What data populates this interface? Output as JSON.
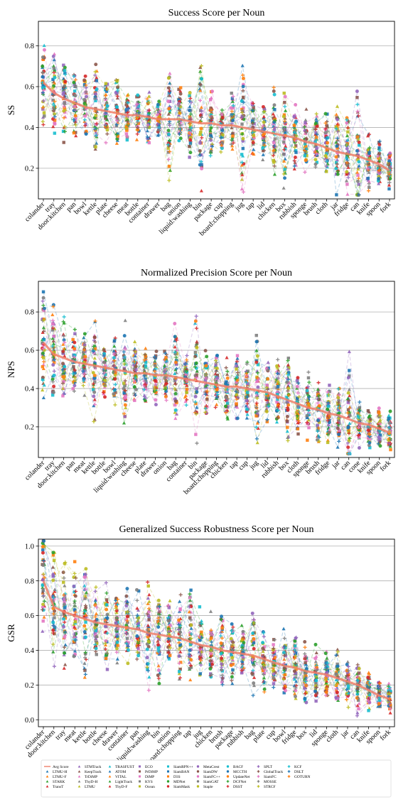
{
  "chart_data": [
    {
      "type": "line",
      "title": "Success Score per Noun",
      "xlabel": "",
      "ylabel": "SS",
      "ylim": [
        0.05,
        0.92
      ],
      "yticks": [
        0.2,
        0.4,
        0.6,
        0.8
      ],
      "grid": "horizontal",
      "categories": [
        "colander",
        "tray",
        "door:kitchen",
        "pan",
        "bowl",
        "kettle",
        "plate",
        "cheese",
        "meat",
        "bottle",
        "container",
        "drawer",
        "bag",
        "onion",
        "liquid:washing",
        "bin",
        "package",
        "cup",
        "board:chopping",
        "jug",
        "tap",
        "lid",
        "chicken",
        "box",
        "rubbish",
        "sponge",
        "brush",
        "cloth",
        "jar",
        "fridge",
        "can",
        "knife",
        "spoon",
        "fork"
      ],
      "avg": [
        0.62,
        0.57,
        0.54,
        0.52,
        0.5,
        0.49,
        0.48,
        0.47,
        0.46,
        0.46,
        0.45,
        0.44,
        0.44,
        0.44,
        0.43,
        0.42,
        0.42,
        0.41,
        0.41,
        0.4,
        0.39,
        0.38,
        0.37,
        0.36,
        0.35,
        0.33,
        0.32,
        0.3,
        0.28,
        0.27,
        0.26,
        0.24,
        0.22,
        0.19
      ],
      "spread": [
        0.28,
        0.24,
        0.28,
        0.18,
        0.18,
        0.3,
        0.18,
        0.2,
        0.14,
        0.14,
        0.14,
        0.14,
        0.32,
        0.18,
        0.18,
        0.36,
        0.2,
        0.14,
        0.18,
        0.36,
        0.16,
        0.16,
        0.24,
        0.26,
        0.18,
        0.18,
        0.18,
        0.22,
        0.24,
        0.2,
        0.4,
        0.16,
        0.12,
        0.1
      ]
    },
    {
      "type": "line",
      "title": "Normalized Precision Score per Noun",
      "xlabel": "",
      "ylabel": "NPS",
      "ylim": [
        0.04,
        0.96
      ],
      "yticks": [
        0.2,
        0.4,
        0.6,
        0.8
      ],
      "grid": "horizontal",
      "categories": [
        "colander",
        "tray",
        "door:kitchen",
        "pan",
        "meat",
        "kettle",
        "bottle",
        "bowl",
        "liquid:washing",
        "cheese",
        "plate",
        "drawer",
        "onion",
        "bag",
        "container",
        "bin",
        "package",
        "board:chopping",
        "chicken",
        "tap",
        "cup",
        "jug",
        "lid",
        "rubbish",
        "box",
        "cloth",
        "sponge",
        "brush",
        "fridge",
        "jar",
        "can",
        "cone",
        "knife",
        "spoon",
        "fork"
      ],
      "avg": [
        0.64,
        0.58,
        0.56,
        0.54,
        0.53,
        0.52,
        0.51,
        0.5,
        0.49,
        0.48,
        0.48,
        0.47,
        0.47,
        0.46,
        0.45,
        0.44,
        0.43,
        0.42,
        0.41,
        0.41,
        0.4,
        0.39,
        0.38,
        0.36,
        0.34,
        0.32,
        0.3,
        0.29,
        0.27,
        0.26,
        0.24,
        0.22,
        0.21,
        0.19,
        0.17
      ],
      "spread": [
        0.3,
        0.28,
        0.26,
        0.2,
        0.2,
        0.3,
        0.2,
        0.2,
        0.3,
        0.2,
        0.2,
        0.16,
        0.16,
        0.3,
        0.16,
        0.38,
        0.2,
        0.18,
        0.2,
        0.18,
        0.16,
        0.36,
        0.18,
        0.2,
        0.28,
        0.2,
        0.2,
        0.2,
        0.2,
        0.2,
        0.38,
        0.14,
        0.14,
        0.12,
        0.12
      ]
    },
    {
      "type": "line",
      "title": "Generalized Success Robustness Score per Noun",
      "xlabel": "",
      "ylabel": "GSR",
      "ylim": [
        -0.04,
        1.04
      ],
      "yticks": [
        0.0,
        0.2,
        0.4,
        0.6,
        0.8,
        1.0
      ],
      "grid": "horizontal",
      "categories": [
        "colander",
        "door:kitchen",
        "tray",
        "meat",
        "kettle",
        "bottle",
        "cheese",
        "drawer",
        "container",
        "pan",
        "liquid:washing",
        "bin",
        "onion",
        "board:chopping",
        "tap",
        "jug",
        "chicken",
        "brush",
        "package",
        "rubbish",
        "bag",
        "plate",
        "cup",
        "bowl",
        "fridge",
        "box",
        "lid",
        "sponge",
        "cloth",
        "jar",
        "can",
        "knife",
        "spoon",
        "fork"
      ],
      "avg": [
        0.8,
        0.65,
        0.62,
        0.6,
        0.58,
        0.56,
        0.55,
        0.54,
        0.53,
        0.52,
        0.5,
        0.49,
        0.48,
        0.47,
        0.45,
        0.43,
        0.42,
        0.4,
        0.39,
        0.38,
        0.37,
        0.35,
        0.33,
        0.31,
        0.3,
        0.28,
        0.27,
        0.26,
        0.24,
        0.22,
        0.2,
        0.17,
        0.14,
        0.12
      ],
      "spread": [
        0.36,
        0.36,
        0.4,
        0.34,
        0.4,
        0.24,
        0.3,
        0.26,
        0.24,
        0.26,
        0.36,
        0.3,
        0.24,
        0.28,
        0.3,
        0.24,
        0.24,
        0.22,
        0.2,
        0.2,
        0.28,
        0.2,
        0.18,
        0.24,
        0.2,
        0.2,
        0.18,
        0.18,
        0.2,
        0.16,
        0.2,
        0.14,
        0.1,
        0.1
      ]
    }
  ],
  "legend": {
    "placement": "bottom",
    "entries": [
      {
        "name": "Avg Score",
        "color": "#f07f6a",
        "marker": "line"
      },
      {
        "name": "LTMU-H",
        "color": "#1f77b4",
        "marker": "triangle"
      },
      {
        "name": "LTMU-F",
        "color": "#ff7f0e",
        "marker": "triangle"
      },
      {
        "name": "STARK",
        "color": "#2ca02c",
        "marker": "triangle"
      },
      {
        "name": "TransT",
        "color": "#d62728",
        "marker": "triangle"
      },
      {
        "name": "STMTrack",
        "color": "#9467bd",
        "marker": "triangle"
      },
      {
        "name": "KeepTrack",
        "color": "#8c564b",
        "marker": "triangle"
      },
      {
        "name": "TrDiMP",
        "color": "#e377c2",
        "marker": "triangle"
      },
      {
        "name": "ThyD-H",
        "color": "#7f7f7f",
        "marker": "triangle"
      },
      {
        "name": "LTMU",
        "color": "#bcbd22",
        "marker": "triangle"
      },
      {
        "name": "TRASFUST",
        "color": "#17becf",
        "marker": "triangle"
      },
      {
        "name": "ATOM",
        "color": "#1f77b4",
        "marker": "triangle"
      },
      {
        "name": "VITAL",
        "color": "#ff7f0e",
        "marker": "triangle"
      },
      {
        "name": "LightTrack",
        "color": "#2ca02c",
        "marker": "triangle"
      },
      {
        "name": "ThyD-F",
        "color": "#d62728",
        "marker": "triangle"
      },
      {
        "name": "ECO",
        "color": "#9467bd",
        "marker": "square"
      },
      {
        "name": "PrDiMP",
        "color": "#8c564b",
        "marker": "square"
      },
      {
        "name": "DiMP",
        "color": "#e377c2",
        "marker": "square"
      },
      {
        "name": "KYS",
        "color": "#7f7f7f",
        "marker": "square"
      },
      {
        "name": "Ocean",
        "color": "#bcbd22",
        "marker": "square"
      },
      {
        "name": "SiamRPN++",
        "color": "#17becf",
        "marker": "square"
      },
      {
        "name": "SiamBAN",
        "color": "#1f77b4",
        "marker": "square"
      },
      {
        "name": "D3S",
        "color": "#ff7f0e",
        "marker": "square"
      },
      {
        "name": "MDNet",
        "color": "#2ca02c",
        "marker": "circle"
      },
      {
        "name": "SiamMask",
        "color": "#d62728",
        "marker": "circle"
      },
      {
        "name": "MetaCrest",
        "color": "#9467bd",
        "marker": "circle"
      },
      {
        "name": "SiamDW",
        "color": "#8c564b",
        "marker": "circle"
      },
      {
        "name": "SiamFC++",
        "color": "#e377c2",
        "marker": "circle"
      },
      {
        "name": "SiamGAT",
        "color": "#7f7f7f",
        "marker": "circle"
      },
      {
        "name": "Staple",
        "color": "#bcbd22",
        "marker": "circle"
      },
      {
        "name": "BACF",
        "color": "#17becf",
        "marker": "circle"
      },
      {
        "name": "MCCTH",
        "color": "#1f77b4",
        "marker": "circle"
      },
      {
        "name": "UpdateNet",
        "color": "#ff7f0e",
        "marker": "circle"
      },
      {
        "name": "DCFNet",
        "color": "#2ca02c",
        "marker": "plus"
      },
      {
        "name": "DSST",
        "color": "#d62728",
        "marker": "plus"
      },
      {
        "name": "SPLT",
        "color": "#9467bd",
        "marker": "plus"
      },
      {
        "name": "GlobalTrack",
        "color": "#8c564b",
        "marker": "plus"
      },
      {
        "name": "SiamFC",
        "color": "#e377c2",
        "marker": "plus"
      },
      {
        "name": "MOSSE",
        "color": "#7f7f7f",
        "marker": "plus"
      },
      {
        "name": "STRCF",
        "color": "#bcbd22",
        "marker": "plus"
      },
      {
        "name": "KCF",
        "color": "#17becf",
        "marker": "plus"
      },
      {
        "name": "DSLT",
        "color": "#1f77b4",
        "marker": "plus"
      },
      {
        "name": "GOTURN",
        "color": "#ff7f0e",
        "marker": "plus"
      }
    ]
  }
}
